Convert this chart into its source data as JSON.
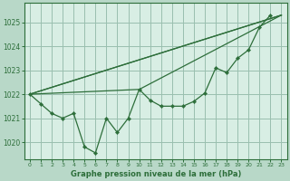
{
  "xlabel": "Graphe pression niveau de la mer (hPa)",
  "background_color": "#b8d8c8",
  "plot_bg_color": "#d8eee4",
  "grid_color": "#9abfaf",
  "line_color": "#2d6e3a",
  "xlim": [
    -0.5,
    23.5
  ],
  "ylim": [
    1019.3,
    1025.8
  ],
  "yticks": [
    1020,
    1021,
    1022,
    1023,
    1024,
    1025
  ],
  "xticks": [
    0,
    1,
    2,
    3,
    4,
    5,
    6,
    7,
    8,
    9,
    10,
    11,
    12,
    13,
    14,
    15,
    16,
    17,
    18,
    19,
    20,
    21,
    22,
    23
  ],
  "series_main_x": [
    0,
    1,
    2,
    3,
    4,
    5,
    6,
    7,
    8,
    9,
    10,
    11,
    12,
    13,
    14,
    15,
    16,
    17,
    18,
    19,
    20,
    21,
    22
  ],
  "series_main_y": [
    1022.0,
    1021.6,
    1021.2,
    1021.0,
    1021.2,
    1019.8,
    1019.55,
    1021.0,
    1020.4,
    1021.0,
    1022.2,
    1021.75,
    1021.5,
    1021.5,
    1021.5,
    1021.7,
    1022.05,
    1023.1,
    1022.9,
    1023.5,
    1023.85,
    1024.8,
    1025.3
  ],
  "line1_x": [
    0,
    23
  ],
  "line1_y": [
    1022.0,
    1025.3
  ],
  "line2_x": [
    0,
    10,
    23
  ],
  "line2_y": [
    1022.0,
    1022.2,
    1025.3
  ],
  "line3_x": [
    0,
    10,
    23
  ],
  "line3_y": [
    1022.0,
    1022.2,
    1025.3
  ]
}
